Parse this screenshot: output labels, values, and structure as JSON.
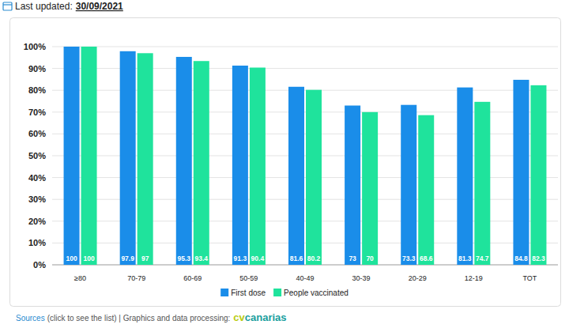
{
  "header": {
    "label": "Last updated:",
    "date": "30/09/2021"
  },
  "chart_data": {
    "type": "bar",
    "categories": [
      "≥80",
      "70-79",
      "60-69",
      "50-59",
      "40-49",
      "30-39",
      "20-29",
      "12-19",
      "TOT"
    ],
    "series": [
      {
        "name": "First dose",
        "color": "#1a8de9",
        "values": [
          100,
          97.9,
          95.3,
          91.3,
          81.6,
          73,
          73.3,
          81.3,
          84.8
        ]
      },
      {
        "name": "People vaccinated",
        "color": "#1fe39c",
        "values": [
          100,
          97,
          93.4,
          90.4,
          80.2,
          70,
          68.6,
          74.7,
          82.3
        ]
      }
    ],
    "ylim": [
      0,
      100
    ],
    "yticks": [
      {
        "value": 0,
        "label": "0%"
      },
      {
        "value": 10,
        "label": "10%"
      },
      {
        "value": 20,
        "label": "20%"
      },
      {
        "value": 30,
        "label": "30%"
      },
      {
        "value": 40,
        "label": "40%"
      },
      {
        "value": 50,
        "label": "50%"
      },
      {
        "value": 60,
        "label": "60%"
      },
      {
        "value": 70,
        "label": "70%"
      },
      {
        "value": 80,
        "label": "80%"
      },
      {
        "value": 90,
        "label": "90%"
      },
      {
        "value": 100,
        "label": "100%"
      }
    ],
    "grid": true,
    "data_labels": true,
    "legend": "bottom"
  },
  "footer": {
    "link": "Sources",
    "text": "(click to see the list) | Graphics and data processing:",
    "brand_prefix": "cv",
    "brand": "canarias"
  }
}
